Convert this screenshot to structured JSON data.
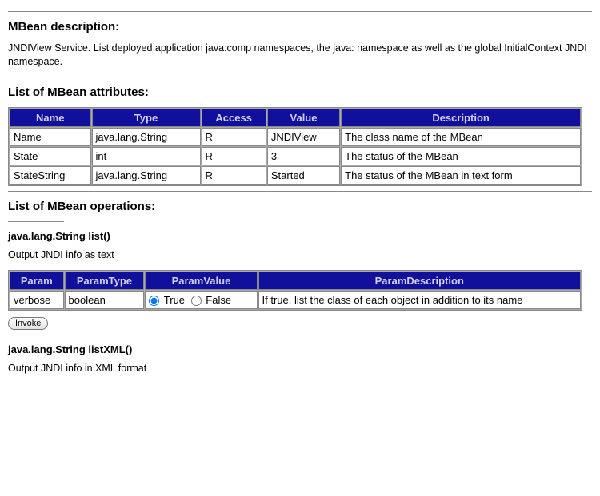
{
  "colors": {
    "header_bg": "#10109c",
    "header_fg": "#d0d0e8",
    "border": "#888888",
    "cell_bg": "#ffffff"
  },
  "section1": {
    "title": "MBean description:",
    "text": "JNDIView Service. List deployed application java:comp namespaces, the java: namespace as well as the global InitialContext JNDI namespace."
  },
  "section2": {
    "title": "List of MBean attributes:",
    "columns": [
      "Name",
      "Type",
      "Access",
      "Value",
      "Description"
    ],
    "rows": [
      [
        "Name",
        "java.lang.String",
        "R",
        "JNDIView",
        "The class name of the MBean"
      ],
      [
        "State",
        "int",
        "R",
        "3",
        "The status of the MBean"
      ],
      [
        "StateString",
        "java.lang.String",
        "R",
        "Started",
        "The status of the MBean in text form"
      ]
    ]
  },
  "section3": {
    "title": "List of MBean operations:"
  },
  "op1": {
    "signature": "java.lang.String list()",
    "desc": "Output JNDI info as text",
    "columns": [
      "Param",
      "ParamType",
      "ParamValue",
      "ParamDescription"
    ],
    "row": {
      "param": "verbose",
      "type": "boolean",
      "opt_true": "True",
      "opt_false": "False",
      "desc": "If true, list the class of each object in addition to its name"
    },
    "invoke_label": "Invoke"
  },
  "op2": {
    "signature": "java.lang.String listXML()",
    "desc": "Output JNDI info in XML format"
  }
}
